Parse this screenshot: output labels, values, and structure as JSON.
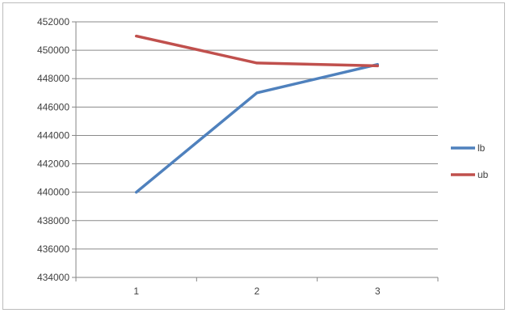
{
  "chart_data": {
    "type": "line",
    "title": "",
    "xlabel": "",
    "ylabel": "",
    "categories": [
      "1",
      "2",
      "3"
    ],
    "ylim": [
      434000,
      452000
    ],
    "y_ticks": [
      "434000",
      "436000",
      "438000",
      "440000",
      "442000",
      "444000",
      "446000",
      "448000",
      "450000",
      "452000"
    ],
    "grid": "horizontal",
    "legend_position": "right",
    "series": [
      {
        "name": "lb",
        "color": "#4f81bd",
        "values": [
          440000,
          447000,
          449000
        ]
      },
      {
        "name": "ub",
        "color": "#c0504d",
        "values": [
          451000,
          449100,
          448900
        ]
      }
    ]
  }
}
